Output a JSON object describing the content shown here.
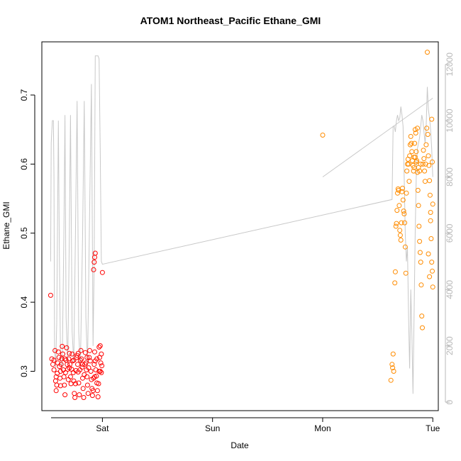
{
  "chart_data": {
    "type": "scatter",
    "title": "ATOM1 Northeast_Pacific Ethane_GMI",
    "xlabel": "Date",
    "ylabel": "Ethane_GMI",
    "x_unit": "days",
    "x_ticks": [
      {
        "value": 1.0,
        "label": "Sat"
      },
      {
        "value": 2.0,
        "label": "Sun"
      },
      {
        "value": 3.0,
        "label": "Mon"
      },
      {
        "value": 4.0,
        "label": "Tue"
      }
    ],
    "xlim": [
      0.45,
      4.05
    ],
    "ylim": [
      0.243,
      0.777
    ],
    "y_ticks": [
      0.3,
      0.4,
      0.5,
      0.6,
      0.7
    ],
    "y2_ticks": [
      0,
      2000,
      4000,
      6000,
      8000,
      10000,
      12000
    ],
    "y2lim": [
      -300,
      12800
    ],
    "colors": {
      "flight1": "#ff0000",
      "flight2": "#ff8c00",
      "altitude": "#c8c8c8"
    },
    "series": [
      {
        "kind": "points",
        "color": "#ff0000",
        "values": [
          [
            0.53,
            0.41
          ],
          [
            0.54,
            0.318
          ],
          [
            0.55,
            0.31
          ],
          [
            0.56,
            0.302
          ],
          [
            0.57,
            0.33
          ],
          [
            0.575,
            0.286
          ],
          [
            0.58,
            0.272
          ],
          [
            0.585,
            0.28
          ],
          [
            0.59,
            0.297
          ],
          [
            0.595,
            0.312
          ],
          [
            0.6,
            0.328
          ],
          [
            0.605,
            0.32
          ],
          [
            0.61,
            0.307
          ],
          [
            0.615,
            0.29
          ],
          [
            0.62,
            0.279
          ],
          [
            0.625,
            0.31
          ],
          [
            0.63,
            0.318
          ],
          [
            0.635,
            0.336
          ],
          [
            0.64,
            0.325
          ],
          [
            0.645,
            0.302
          ],
          [
            0.65,
            0.292
          ],
          [
            0.655,
            0.28
          ],
          [
            0.66,
            0.266
          ],
          [
            0.665,
            0.298
          ],
          [
            0.67,
            0.316
          ],
          [
            0.675,
            0.334
          ],
          [
            0.68,
            0.31
          ],
          [
            0.685,
            0.303
          ],
          [
            0.69,
            0.288
          ],
          [
            0.695,
            0.318
          ],
          [
            0.7,
            0.326
          ],
          [
            0.705,
            0.31
          ],
          [
            0.71,
            0.292
          ],
          [
            0.715,
            0.282
          ],
          [
            0.72,
            0.303
          ],
          [
            0.725,
            0.325
          ],
          [
            0.73,
            0.315
          ],
          [
            0.735,
            0.298
          ],
          [
            0.74,
            0.286
          ],
          [
            0.745,
            0.268
          ],
          [
            0.75,
            0.262
          ],
          [
            0.755,
            0.282
          ],
          [
            0.76,
            0.301
          ],
          [
            0.765,
            0.32
          ],
          [
            0.77,
            0.323
          ],
          [
            0.775,
            0.31
          ],
          [
            0.78,
            0.299
          ],
          [
            0.785,
            0.283
          ],
          [
            0.79,
            0.266
          ],
          [
            0.795,
            0.302
          ],
          [
            0.8,
            0.316
          ],
          [
            0.805,
            0.33
          ],
          [
            0.81,
            0.318
          ],
          [
            0.815,
            0.306
          ],
          [
            0.82,
            0.29
          ],
          [
            0.825,
            0.275
          ],
          [
            0.83,
            0.262
          ],
          [
            0.835,
            0.295
          ],
          [
            0.84,
            0.31
          ],
          [
            0.845,
            0.327
          ],
          [
            0.85,
            0.312
          ],
          [
            0.855,
            0.302
          ],
          [
            0.86,
            0.292
          ],
          [
            0.865,
            0.28
          ],
          [
            0.87,
            0.268
          ],
          [
            0.875,
            0.305
          ],
          [
            0.88,
            0.32
          ],
          [
            0.885,
            0.33
          ],
          [
            0.89,
            0.315
          ],
          [
            0.895,
            0.3
          ],
          [
            0.9,
            0.288
          ],
          [
            0.905,
            0.275
          ],
          [
            0.91,
            0.265
          ],
          [
            0.915,
            0.272
          ],
          [
            0.92,
            0.29
          ],
          [
            0.925,
            0.31
          ],
          [
            0.93,
            0.328
          ],
          [
            0.935,
            0.315
          ],
          [
            0.94,
            0.302
          ],
          [
            0.945,
            0.293
          ],
          [
            0.95,
            0.283
          ],
          [
            0.955,
            0.272
          ],
          [
            0.96,
            0.263
          ],
          [
            0.965,
            0.282
          ],
          [
            0.97,
            0.3
          ],
          [
            0.975,
            0.32
          ],
          [
            0.98,
            0.337
          ],
          [
            0.985,
            0.312
          ],
          [
            0.99,
            0.298
          ],
          [
            0.995,
            0.308
          ],
          [
            0.92,
            0.447
          ],
          [
            0.925,
            0.458
          ],
          [
            0.93,
            0.465
          ],
          [
            0.935,
            0.471
          ],
          [
            1.0,
            0.443
          ],
          [
            0.98,
            0.3
          ],
          [
            0.99,
            0.325
          ],
          [
            0.97,
            0.335
          ],
          [
            0.95,
            0.318
          ],
          [
            0.93,
            0.292
          ],
          [
            0.86,
            0.32
          ],
          [
            0.82,
            0.31
          ],
          [
            0.78,
            0.326
          ],
          [
            0.74,
            0.316
          ],
          [
            0.7,
            0.305
          ],
          [
            0.66,
            0.318
          ],
          [
            0.62,
            0.3
          ],
          [
            0.58,
            0.292
          ],
          [
            0.56,
            0.316
          ]
        ]
      },
      {
        "kind": "points",
        "color": "#ff8c00",
        "values": [
          [
            3.0,
            0.642
          ],
          [
            3.62,
            0.287
          ],
          [
            3.63,
            0.31
          ],
          [
            3.635,
            0.305
          ],
          [
            3.64,
            0.325
          ],
          [
            3.645,
            0.3
          ],
          [
            3.66,
            0.444
          ],
          [
            3.655,
            0.428
          ],
          [
            3.665,
            0.51
          ],
          [
            3.67,
            0.514
          ],
          [
            3.675,
            0.533
          ],
          [
            3.68,
            0.558
          ],
          [
            3.685,
            0.564
          ],
          [
            3.69,
            0.562
          ],
          [
            3.695,
            0.54
          ],
          [
            3.7,
            0.504
          ],
          [
            3.705,
            0.497
          ],
          [
            3.71,
            0.49
          ],
          [
            3.715,
            0.515
          ],
          [
            3.72,
            0.56
          ],
          [
            3.725,
            0.565
          ],
          [
            3.73,
            0.548
          ],
          [
            3.735,
            0.532
          ],
          [
            3.74,
            0.528
          ],
          [
            3.745,
            0.515
          ],
          [
            3.75,
            0.48
          ],
          [
            3.755,
            0.442
          ],
          [
            3.76,
            0.558
          ],
          [
            3.765,
            0.59
          ],
          [
            3.77,
            0.6
          ],
          [
            3.775,
            0.607
          ],
          [
            3.78,
            0.6
          ],
          [
            3.785,
            0.575
          ],
          [
            3.79,
            0.612
          ],
          [
            3.795,
            0.628
          ],
          [
            3.8,
            0.64
          ],
          [
            3.805,
            0.63
          ],
          [
            3.81,
            0.618
          ],
          [
            3.815,
            0.605
          ],
          [
            3.82,
            0.598
          ],
          [
            3.825,
            0.59
          ],
          [
            3.83,
            0.61
          ],
          [
            3.835,
            0.63
          ],
          [
            3.84,
            0.65
          ],
          [
            3.845,
            0.645
          ],
          [
            3.85,
            0.618
          ],
          [
            3.855,
            0.605
          ],
          [
            3.86,
            0.588
          ],
          [
            3.865,
            0.562
          ],
          [
            3.87,
            0.54
          ],
          [
            3.875,
            0.51
          ],
          [
            3.88,
            0.488
          ],
          [
            3.885,
            0.472
          ],
          [
            3.89,
            0.458
          ],
          [
            3.895,
            0.425
          ],
          [
            3.9,
            0.38
          ],
          [
            3.905,
            0.363
          ],
          [
            3.91,
            0.6
          ],
          [
            3.915,
            0.62
          ],
          [
            3.92,
            0.608
          ],
          [
            3.925,
            0.59
          ],
          [
            3.93,
            0.575
          ],
          [
            3.935,
            0.6
          ],
          [
            3.94,
            0.628
          ],
          [
            3.945,
            0.652
          ],
          [
            3.95,
            0.762
          ],
          [
            3.955,
            0.643
          ],
          [
            3.96,
            0.612
          ],
          [
            3.965,
            0.598
          ],
          [
            3.97,
            0.576
          ],
          [
            3.975,
            0.555
          ],
          [
            3.98,
            0.518
          ],
          [
            3.985,
            0.492
          ],
          [
            3.99,
            0.458
          ],
          [
            3.995,
            0.445
          ],
          [
            4.0,
            0.422
          ],
          [
            4.0,
            0.542
          ],
          [
            3.995,
            0.603
          ],
          [
            3.99,
            0.665
          ],
          [
            3.98,
            0.53
          ],
          [
            3.97,
            0.437
          ],
          [
            3.96,
            0.47
          ],
          [
            3.85,
            0.603
          ],
          [
            3.84,
            0.61
          ],
          [
            3.83,
            0.595
          ],
          [
            3.86,
            0.652
          ],
          [
            3.87,
            0.595
          ],
          [
            3.88,
            0.59
          ],
          [
            3.89,
            0.6
          ]
        ]
      },
      {
        "kind": "line",
        "axis": "y2",
        "color": "#c8c8c8",
        "values": [
          [
            0.53,
            5000
          ],
          [
            0.535,
            9200
          ],
          [
            0.545,
            10000
          ],
          [
            0.555,
            10000
          ],
          [
            0.56,
            8000
          ],
          [
            0.565,
            2000
          ],
          [
            0.575,
            1200
          ],
          [
            0.585,
            2800
          ],
          [
            0.6,
            10000
          ],
          [
            0.61,
            5000
          ],
          [
            0.62,
            1500
          ],
          [
            0.635,
            1200
          ],
          [
            0.65,
            6000
          ],
          [
            0.66,
            10200
          ],
          [
            0.67,
            3000
          ],
          [
            0.685,
            1300
          ],
          [
            0.7,
            6000
          ],
          [
            0.71,
            10200
          ],
          [
            0.725,
            2500
          ],
          [
            0.74,
            1400
          ],
          [
            0.755,
            6000
          ],
          [
            0.77,
            10700
          ],
          [
            0.785,
            2500
          ],
          [
            0.8,
            1200
          ],
          [
            0.82,
            6000
          ],
          [
            0.835,
            10700
          ],
          [
            0.85,
            3000
          ],
          [
            0.865,
            1300
          ],
          [
            0.885,
            7000
          ],
          [
            0.9,
            11300
          ],
          [
            0.915,
            2000
          ],
          [
            0.925,
            5000
          ],
          [
            0.935,
            12300
          ],
          [
            0.95,
            12300
          ],
          [
            0.96,
            12300
          ],
          [
            0.97,
            12200
          ],
          [
            0.98,
            9000
          ],
          [
            0.99,
            5000
          ],
          [
            1.0,
            4900
          ],
          [
            3.63,
            7200
          ],
          [
            3.64,
            9800
          ],
          [
            3.65,
            9800
          ],
          [
            3.66,
            9600
          ],
          [
            3.67,
            10000
          ],
          [
            3.68,
            10200
          ],
          [
            3.69,
            10000
          ],
          [
            3.7,
            10100
          ],
          [
            3.71,
            10500
          ],
          [
            3.72,
            10200
          ],
          [
            3.73,
            9800
          ],
          [
            3.74,
            8000
          ],
          [
            3.75,
            6000
          ],
          [
            3.76,
            5000
          ],
          [
            3.77,
            5500
          ],
          [
            3.78,
            3000
          ],
          [
            3.79,
            1200
          ],
          [
            3.8,
            4000
          ],
          [
            3.81,
            2500
          ],
          [
            3.82,
            300
          ],
          [
            3.83,
            3000
          ],
          [
            3.84,
            6000
          ],
          [
            3.85,
            8000
          ],
          [
            3.86,
            9000
          ],
          [
            3.87,
            9200
          ],
          [
            3.88,
            9400
          ],
          [
            3.89,
            9800
          ],
          [
            3.9,
            10200
          ],
          [
            3.91,
            10000
          ],
          [
            3.92,
            9600
          ],
          [
            3.93,
            9200
          ],
          [
            3.94,
            9800
          ],
          [
            3.95,
            11200
          ],
          [
            3.96,
            10400
          ],
          [
            3.97,
            10100
          ],
          [
            3.98,
            9700
          ],
          [
            3.99,
            9000
          ],
          [
            4.0,
            8000
          ]
        ]
      },
      {
        "kind": "line",
        "axis": "y2",
        "color": "#c8c8c8",
        "values": [
          [
            3.0,
            8000
          ],
          [
            4.0,
            10800
          ]
        ]
      }
    ]
  }
}
